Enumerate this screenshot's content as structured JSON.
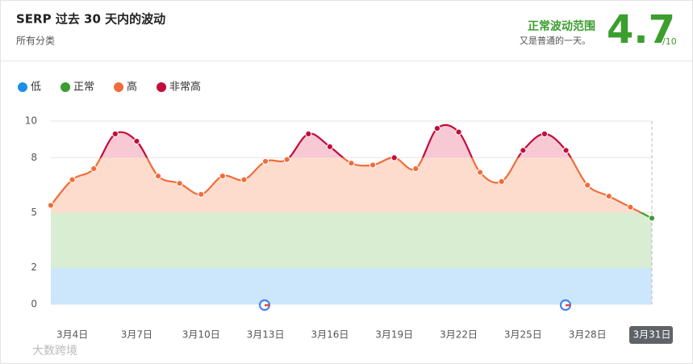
{
  "header": {
    "title": "SERP 过去 30 天内的波动",
    "subtitle": "所有分类",
    "status": "正常波动范围",
    "status_note": "又是普通的一天。",
    "score": 4.7,
    "score_max": "/10"
  },
  "chart_data": {
    "type": "line",
    "zones": [
      {
        "name": "低",
        "color": "#1e8fe6",
        "fill": "#cce7fb",
        "range": [
          0,
          2
        ]
      },
      {
        "name": "正常",
        "color": "#3b9e2e",
        "fill": "#d9edd2",
        "range": [
          2,
          5
        ]
      },
      {
        "name": "高",
        "color": "#f06d3a",
        "fill": "#fddccd",
        "range": [
          5,
          8
        ]
      },
      {
        "name": "非常高",
        "color": "#c40c3a",
        "fill": "#f6c9d5",
        "range": [
          8,
          10
        ]
      }
    ],
    "categories": [
      null,
      "3月4日",
      null,
      null,
      "3月7日",
      null,
      null,
      "3月10日",
      null,
      null,
      "3月13日",
      null,
      null,
      "3月16日",
      null,
      null,
      "3月19日",
      null,
      null,
      "3月22日",
      null,
      null,
      "3月25日",
      null,
      null,
      "3月28日",
      null,
      null,
      "3月31日"
    ],
    "values": [
      5.4,
      6.8,
      7.4,
      9.3,
      8.9,
      7.0,
      6.6,
      6.0,
      7.0,
      6.8,
      7.8,
      7.9,
      9.3,
      8.6,
      7.7,
      7.6,
      8.0,
      7.4,
      9.6,
      9.4,
      7.2,
      6.7,
      8.4,
      9.3,
      8.4,
      6.5,
      5.9,
      5.3,
      4.7
    ],
    "ylim": [
      0,
      10
    ],
    "yticks": [
      0,
      2,
      5,
      8,
      10
    ],
    "grid": true
  },
  "watermark": "大数跨境"
}
